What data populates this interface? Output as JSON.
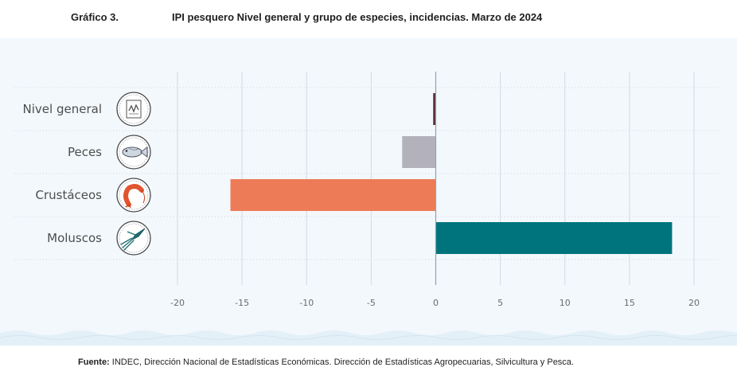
{
  "header": {
    "figure_number": "Gráfico 3.",
    "title": "IPI pesquero Nivel general y grupo de especies, incidencias. Marzo de 2024"
  },
  "footer": {
    "source_label": "Fuente:",
    "source_text": " INDEC, Dirección Nacional de Estadísticas Económicas. Dirección de Estadísticas Agropecuarias, Silvicultura y Pesca."
  },
  "chart_data": {
    "type": "bar",
    "orientation": "horizontal",
    "title": "IPI pesquero Nivel general y grupo de especies, incidencias. Marzo de 2024",
    "categories": [
      "Nivel general",
      "Peces",
      "Crustáceos",
      "Moluscos"
    ],
    "values": [
      -0.2,
      -2.6,
      -15.9,
      18.3
    ],
    "colors": [
      "#5b2c35",
      "#b2b1bc",
      "#ee7b58",
      "#00747c"
    ],
    "icons": [
      "chart-document-icon",
      "fish-icon",
      "shrimp-icon",
      "squid-icon"
    ],
    "xlim": [
      -20,
      20
    ],
    "xticks": [
      -20,
      -15,
      -10,
      -5,
      0,
      5,
      10,
      15,
      20
    ],
    "xlabel": "",
    "ylabel": "",
    "grid": true
  }
}
